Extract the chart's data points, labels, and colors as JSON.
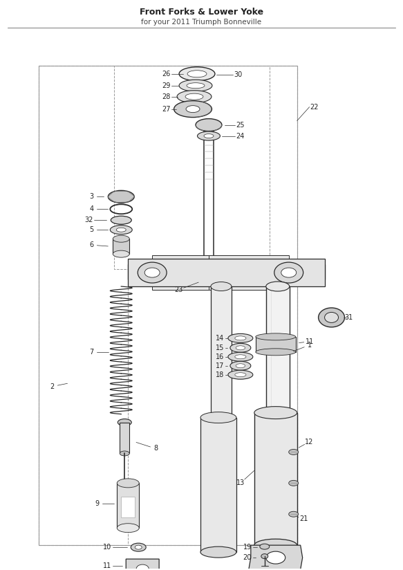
{
  "title": "Front Forks & Lower Yoke",
  "subtitle": "for your 2011 Triumph Bonneville",
  "bg_color": "#ffffff",
  "line_color": "#2a2a2a",
  "dashed_color": "#999999",
  "fig_width": 5.83,
  "fig_height": 8.24,
  "dpi": 100,
  "title_fontsize": 9,
  "subtitle_fontsize": 7.5,
  "label_fontsize": 7,
  "lw_main": 0.9,
  "lw_thin": 0.5,
  "gray_dark": "#555555",
  "gray_mid": "#888888",
  "gray_light": "#cccccc",
  "gray_lighter": "#e8e8e8",
  "part_fill": "#d8d8d8",
  "part_fill2": "#e4e4e4"
}
